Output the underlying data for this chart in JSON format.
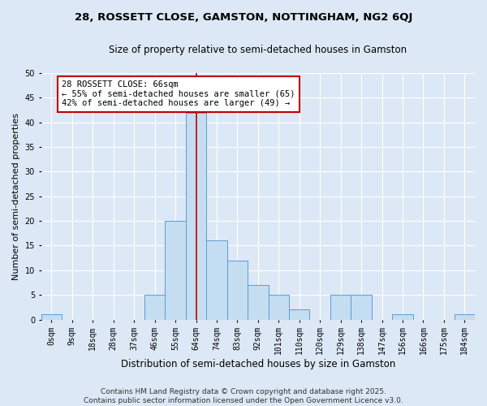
{
  "title_line1": "28, ROSSETT CLOSE, GAMSTON, NOTTINGHAM, NG2 6QJ",
  "title_line2": "Size of property relative to semi-detached houses in Gamston",
  "xlabel": "Distribution of semi-detached houses by size in Gamston",
  "ylabel": "Number of semi-detached properties",
  "bin_labels": [
    "0sqm",
    "9sqm",
    "18sqm",
    "28sqm",
    "37sqm",
    "46sqm",
    "55sqm",
    "64sqm",
    "74sqm",
    "83sqm",
    "92sqm",
    "101sqm",
    "110sqm",
    "120sqm",
    "129sqm",
    "138sqm",
    "147sqm",
    "156sqm",
    "166sqm",
    "175sqm",
    "184sqm"
  ],
  "bar_values": [
    1,
    0,
    0,
    0,
    0,
    5,
    20,
    42,
    16,
    12,
    7,
    5,
    2,
    0,
    5,
    5,
    0,
    1,
    0,
    0,
    1
  ],
  "bar_color": "#c5ddf0",
  "bar_edge_color": "#5b9bd5",
  "annotation_title": "28 ROSSETT CLOSE: 66sqm",
  "annotation_line2": "← 55% of semi-detached houses are smaller (65)",
  "annotation_line3": "42% of semi-detached houses are larger (49) →",
  "vline_color": "#c00000",
  "annotation_box_color": "#ffffff",
  "annotation_box_edge": "#c00000",
  "ylim": [
    0,
    50
  ],
  "yticks": [
    0,
    5,
    10,
    15,
    20,
    25,
    30,
    35,
    40,
    45,
    50
  ],
  "footer_line1": "Contains HM Land Registry data © Crown copyright and database right 2025.",
  "footer_line2": "Contains public sector information licensed under the Open Government Licence v3.0.",
  "background_color": "#dce8f5",
  "grid_color": "#ffffff",
  "title_fontsize": 9.5,
  "subtitle_fontsize": 8.5,
  "axis_label_fontsize": 8,
  "tick_fontsize": 7,
  "footer_fontsize": 6.5,
  "annotation_fontsize": 7.5
}
